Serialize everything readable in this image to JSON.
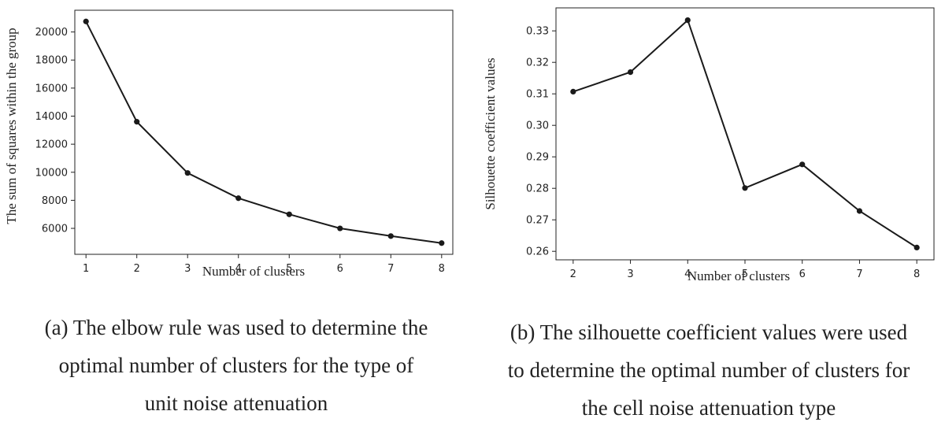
{
  "chart_data": [
    {
      "type": "line",
      "x": [
        1,
        2,
        3,
        4,
        5,
        6,
        7,
        8
      ],
      "series": [
        {
          "values": [
            20750,
            13600,
            9950,
            8150,
            7000,
            6000,
            5450,
            4950
          ]
        }
      ],
      "xlabel": "Number of clusters",
      "ylabel": "The sum of squares within the group",
      "xticks": [
        1,
        2,
        3,
        4,
        5,
        6,
        7,
        8
      ],
      "yticks": [
        6000,
        8000,
        10000,
        12000,
        14000,
        16000,
        18000,
        20000
      ],
      "xlim": [
        0.78,
        8.22
      ],
      "ylim": [
        4150,
        21550
      ],
      "grid": false,
      "color": "#1a1a1a"
    },
    {
      "type": "line",
      "x": [
        2,
        3,
        4,
        5,
        6,
        7,
        8
      ],
      "series": [
        {
          "values": [
            0.3107,
            0.3169,
            0.3334,
            0.2801,
            0.2876,
            0.2728,
            0.2612
          ]
        }
      ],
      "xlabel": "Number of clusters",
      "ylabel": "Silhouette coefficient values",
      "xticks": [
        2,
        3,
        4,
        5,
        6,
        7,
        8
      ],
      "yticks": [
        0.26,
        0.27,
        0.28,
        0.29,
        0.3,
        0.31,
        0.32,
        0.33
      ],
      "ytick_labels": [
        "0.26",
        "0.27",
        "0.28",
        "0.29",
        "0.30",
        "0.31",
        "0.32",
        "0.33"
      ],
      "xlim": [
        1.7,
        8.3
      ],
      "ylim": [
        0.2573,
        0.3373
      ],
      "grid": false,
      "color": "#1a1a1a"
    }
  ],
  "captions": {
    "a": [
      "(a) The elbow rule was used to determine the",
      "optimal number of clusters for the type of",
      "unit noise attenuation"
    ],
    "b": [
      "(b) The silhouette coefficient values were used",
      "to determine the optimal number of clusters for",
      "the cell noise attenuation type"
    ]
  }
}
